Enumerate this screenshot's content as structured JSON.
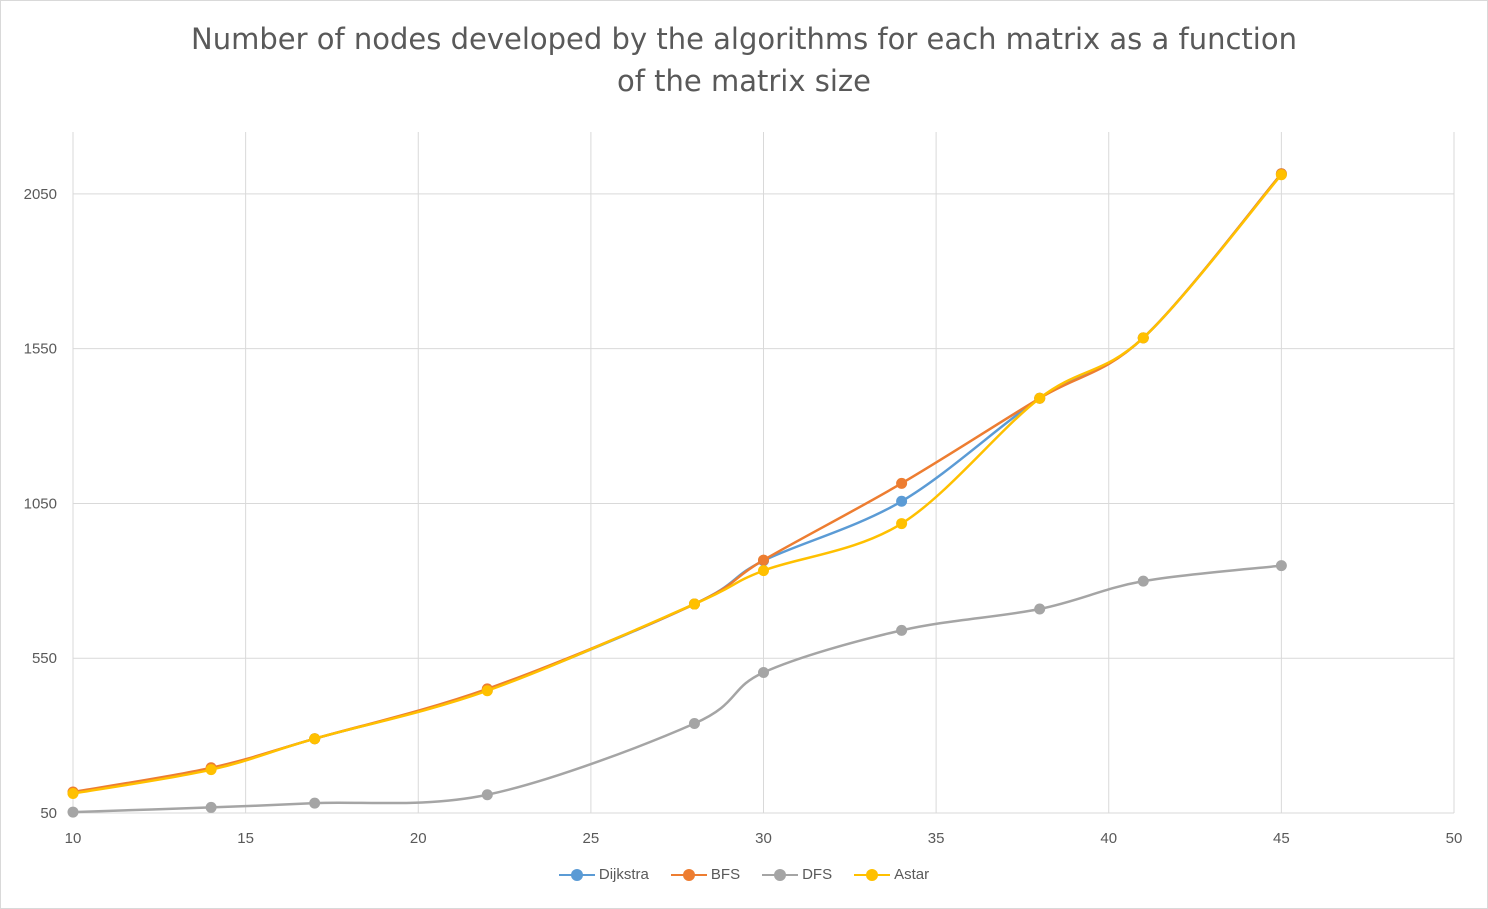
{
  "chart_data": {
    "type": "line",
    "title_lines": [
      "Number of nodes developed by the algorithms for each matrix as a function",
      "of the matrix size"
    ],
    "xlabel": "",
    "ylabel": "",
    "xlim": [
      10,
      50
    ],
    "ylim": [
      50,
      2250
    ],
    "x_ticks": [
      10,
      15,
      20,
      25,
      30,
      35,
      40,
      45,
      50
    ],
    "y_ticks": [
      50,
      550,
      1050,
      1550,
      2050
    ],
    "grid": true,
    "legend_position": "bottom",
    "x": [
      10,
      14,
      17,
      22,
      28,
      30,
      34,
      38,
      41,
      45
    ],
    "series": [
      {
        "name": "Dijkstra",
        "color": "#5B9BD5",
        "values": [
          115,
          193,
          290,
          447,
          725,
          865,
          1057,
          1390,
          1585,
          2115
        ]
      },
      {
        "name": "BFS",
        "color": "#ED7D31",
        "values": [
          118,
          196,
          290,
          451,
          725,
          867,
          1115,
          1390,
          1585,
          2115
        ]
      },
      {
        "name": "DFS",
        "color": "#A5A5A5",
        "values": [
          53,
          68,
          82,
          109,
          339,
          504,
          640,
          709,
          799,
          849
        ]
      },
      {
        "name": "Astar",
        "color": "#FFC000",
        "values": [
          113,
          190,
          290,
          445,
          725,
          833,
          985,
          1390,
          1585,
          2112
        ]
      }
    ]
  }
}
